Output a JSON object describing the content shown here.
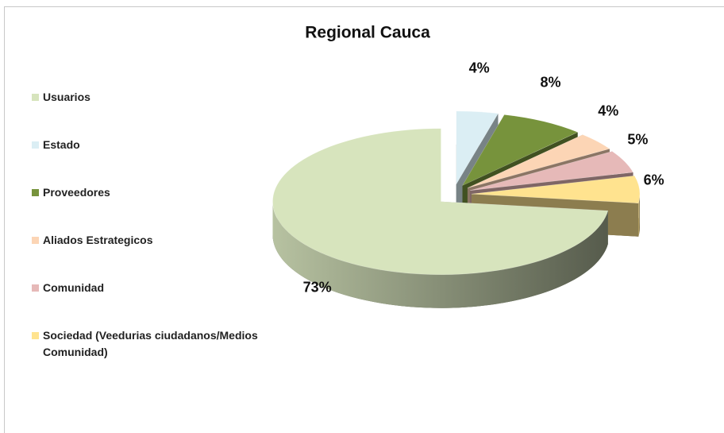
{
  "chart_data": {
    "type": "pie",
    "title": "Regional Cauca",
    "categories": [
      "Usuarios",
      "Estado",
      "Proveedores",
      "Aliados Estrategicos",
      "Comunidad",
      "Sociedad (Veedurias ciudadanos/Medios Comunidad)"
    ],
    "values": [
      73,
      4,
      8,
      4,
      5,
      6
    ],
    "value_labels": [
      "73%",
      "4%",
      "8%",
      "4%",
      "5%",
      "6%"
    ],
    "colors": [
      "#d7e4bd",
      "#dbeef4",
      "#77933c",
      "#fcd5b5",
      "#e6b9b8",
      "#ffe38f"
    ],
    "legend": "left"
  }
}
